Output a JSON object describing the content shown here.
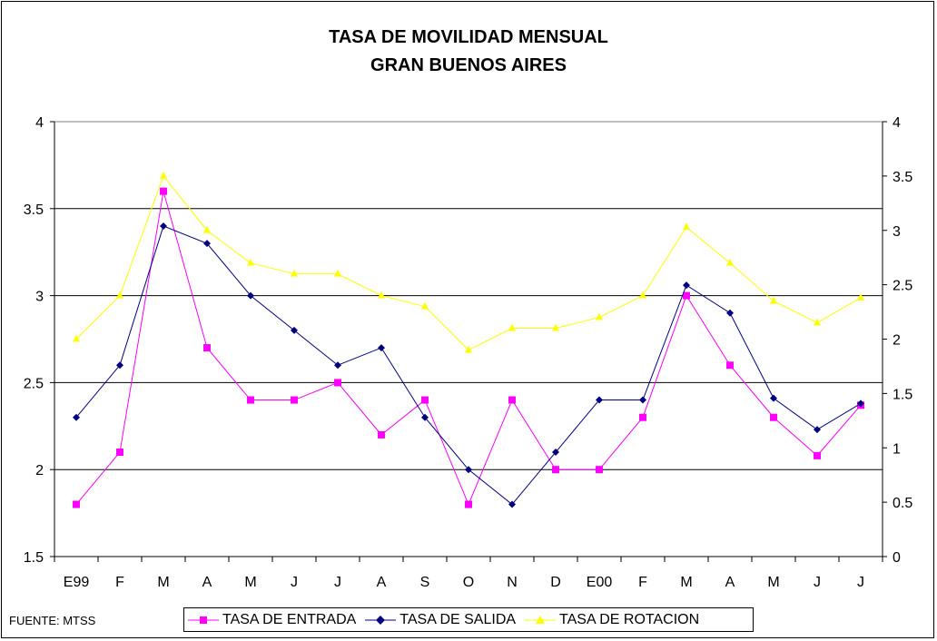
{
  "title_line1": "TASA DE MOVILIDAD MENSUAL",
  "title_line2": "GRAN BUENOS AIRES",
  "source": "FUENTE: MTSS",
  "colors": {
    "entrada": "#ff00ff",
    "salida": "#000080",
    "rotacion": "#ffff00"
  },
  "chart_data": {
    "type": "line",
    "title": "TASA DE MOVILIDAD MENSUAL GRAN BUENOS AIRES",
    "categories": [
      "E99",
      "F",
      "M",
      "A",
      "M",
      "J",
      "J",
      "A",
      "S",
      "O",
      "N",
      "D",
      "E00",
      "F",
      "M",
      "A",
      "M",
      "J",
      "J"
    ],
    "y_left": {
      "min": 1.5,
      "max": 4,
      "ticks": [
        "1.5",
        "2",
        "2.5",
        "3",
        "3.5",
        "4"
      ]
    },
    "y_right": {
      "min": 0,
      "max": 4,
      "ticks": [
        "0",
        "0.5",
        "1",
        "1.5",
        "2",
        "2.5",
        "3",
        "3.5",
        "4"
      ]
    },
    "grid": true,
    "legend_position": "bottom",
    "series": [
      {
        "name": "TASA DE ENTRADA",
        "axis": "left",
        "marker": "square",
        "values": [
          1.8,
          2.1,
          3.6,
          2.7,
          2.4,
          2.4,
          2.5,
          2.2,
          2.4,
          1.8,
          2.4,
          2.0,
          2.0,
          2.3,
          3.0,
          2.6,
          2.3,
          2.08,
          2.37
        ]
      },
      {
        "name": "TASA DE SALIDA",
        "axis": "left",
        "marker": "diamond",
        "values": [
          2.3,
          2.6,
          3.4,
          3.3,
          3.0,
          2.8,
          2.6,
          2.7,
          2.3,
          2.0,
          1.8,
          2.1,
          2.4,
          2.4,
          3.06,
          2.9,
          2.41,
          2.23,
          2.38
        ]
      },
      {
        "name": "TASA DE ROTACION",
        "axis": "right",
        "marker": "triangle",
        "values": [
          2.0,
          2.4,
          3.5,
          3.0,
          2.7,
          2.6,
          2.6,
          2.4,
          2.3,
          1.9,
          2.1,
          2.1,
          2.2,
          2.4,
          3.03,
          2.7,
          2.35,
          2.15,
          2.38
        ]
      }
    ]
  }
}
